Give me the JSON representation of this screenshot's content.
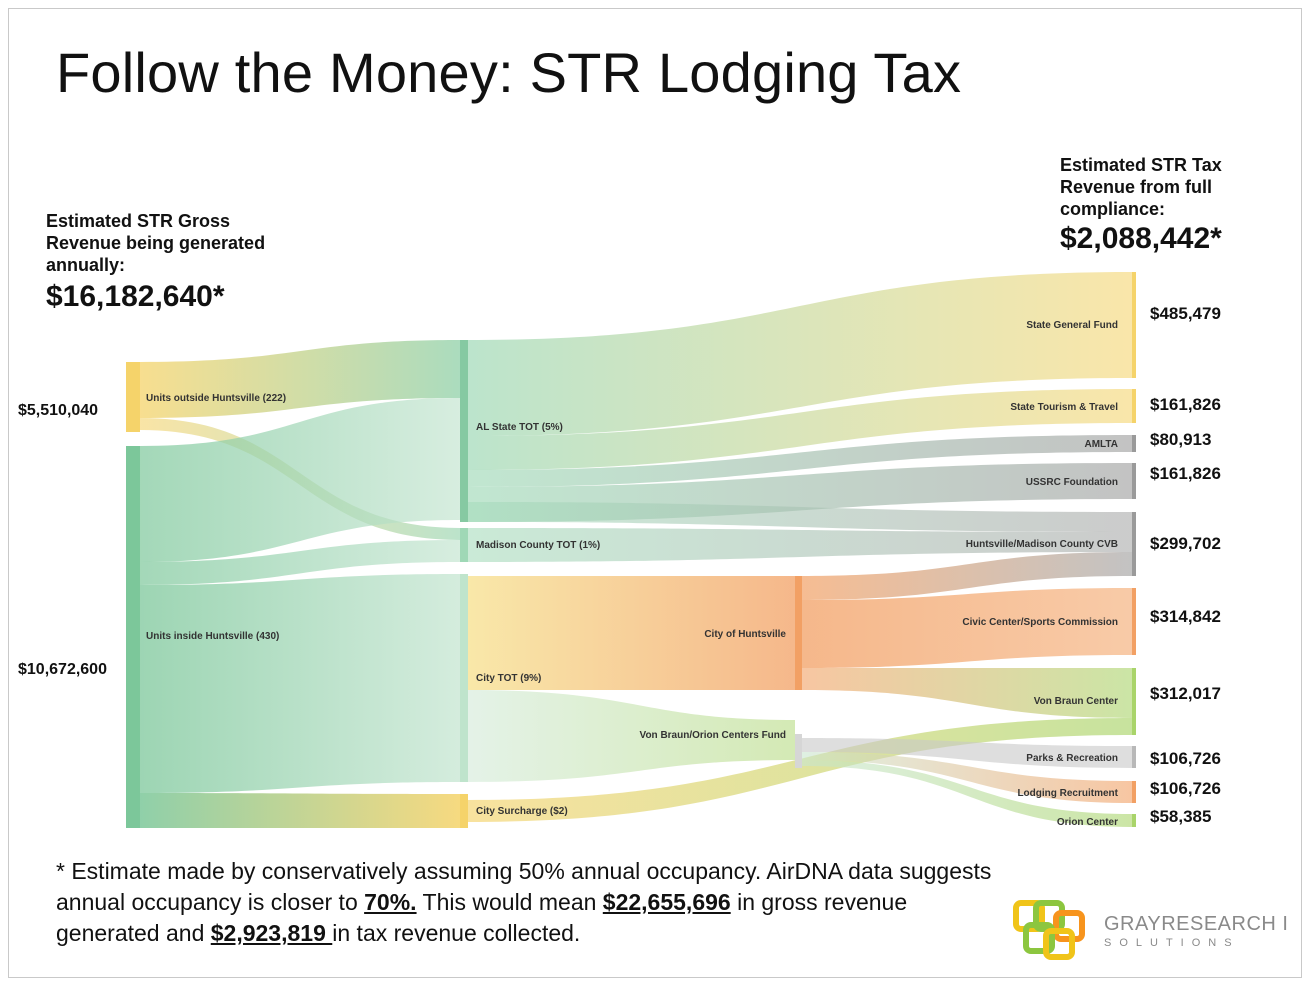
{
  "title": "Follow the Money: STR Lodging Tax",
  "gross": {
    "label": "Estimated STR Gross Revenue being generated annually:",
    "total": "$16,182,640*"
  },
  "tax": {
    "label": "Estimated STR Tax Revenue from full compliance:",
    "total": "$2,088,442*"
  },
  "left_values": {
    "outside": "$5,510,040",
    "inside": "$10,672,600"
  },
  "right_values": {
    "state_general_fund": "$485,479",
    "state_tourism": "$161,826",
    "amlta": "$80,913",
    "ussrc": "$161,826",
    "cvb": "$299,702",
    "civic_center": "$314,842",
    "von_braun_center": "$312,017",
    "parks": "$106,726",
    "lodging_recruitment": "$106,726",
    "orion_center": "$58,385"
  },
  "nodes": {
    "units_outside": "Units outside Huntsville (222)",
    "units_inside": "Units inside Huntsville (430)",
    "al_state_tot": "AL State TOT (5%)",
    "madison_county_tot": "Madison County TOT (1%)",
    "city_tot": "City TOT (9%)",
    "city_surcharge": "City Surcharge ($2)",
    "city_of_huntsville": "City of Huntsville",
    "vb_orion_fund": "Von Braun/Orion Centers Fund",
    "state_general_fund": "State General Fund",
    "state_tourism": "State Tourism & Travel",
    "amlta": "AMLTA",
    "ussrc": "USSRC Foundation",
    "cvb": "Huntsville/Madison County CVB",
    "civic_center": "Civic Center/Sports Commission",
    "von_braun_center": "Von Braun Center",
    "parks": "Parks & Recreation",
    "lodging_recruitment": "Lodging Recruitment",
    "orion_center": "Orion Center"
  },
  "colors": {
    "green": "#7cc79a",
    "yellow": "#f5d36a",
    "orange": "#f2a064",
    "gray": "#b3b3b3",
    "lime": "#a9d46a"
  },
  "footnote": {
    "p1": "* Estimate made by conservatively assuming 50% annual occupancy. AirDNA data suggests annual occupancy is closer to ",
    "occupancy": "70%.",
    "p2": " This would mean ",
    "gross_alt": "$22,655,696",
    "p3": " in gross revenue generated and ",
    "tax_alt": "$2,923,819 ",
    "p4": "in tax revenue collected."
  },
  "logo": {
    "name": "GRAYRESEARCH I",
    "sub": "SOLUTIONS"
  }
}
